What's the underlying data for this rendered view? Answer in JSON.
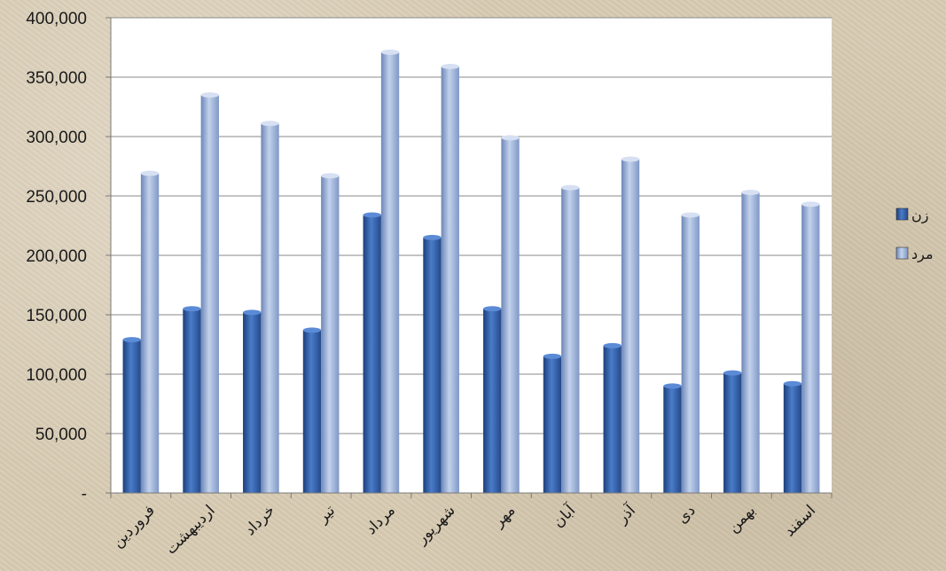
{
  "chart_data": {
    "type": "bar",
    "categories": [
      "فروردین",
      "اردیبهشت",
      "خرداد",
      "تیر",
      "مرداد",
      "شهریور",
      "مهر",
      "آبان",
      "آذر",
      "دی",
      "بهمن",
      "اسفند"
    ],
    "series": [
      {
        "name": "زن",
        "color": "#2f5ea8",
        "values": [
          129000,
          155000,
          152000,
          137000,
          234000,
          215000,
          155000,
          115000,
          124000,
          90000,
          101000,
          92000
        ]
      },
      {
        "name": "مرد",
        "color": "#8ba4d0",
        "values": [
          269000,
          335000,
          311000,
          267000,
          371000,
          359000,
          299000,
          257000,
          281000,
          234000,
          253000,
          243000
        ]
      }
    ],
    "yticks": [
      "-",
      "50,000",
      "100,000",
      "150,000",
      "200,000",
      "250,000",
      "300,000",
      "350,000",
      "400,000"
    ],
    "ylim": [
      0,
      400000
    ],
    "grid": true,
    "legend_position": "right",
    "title": "",
    "xlabel": "",
    "ylabel": ""
  }
}
